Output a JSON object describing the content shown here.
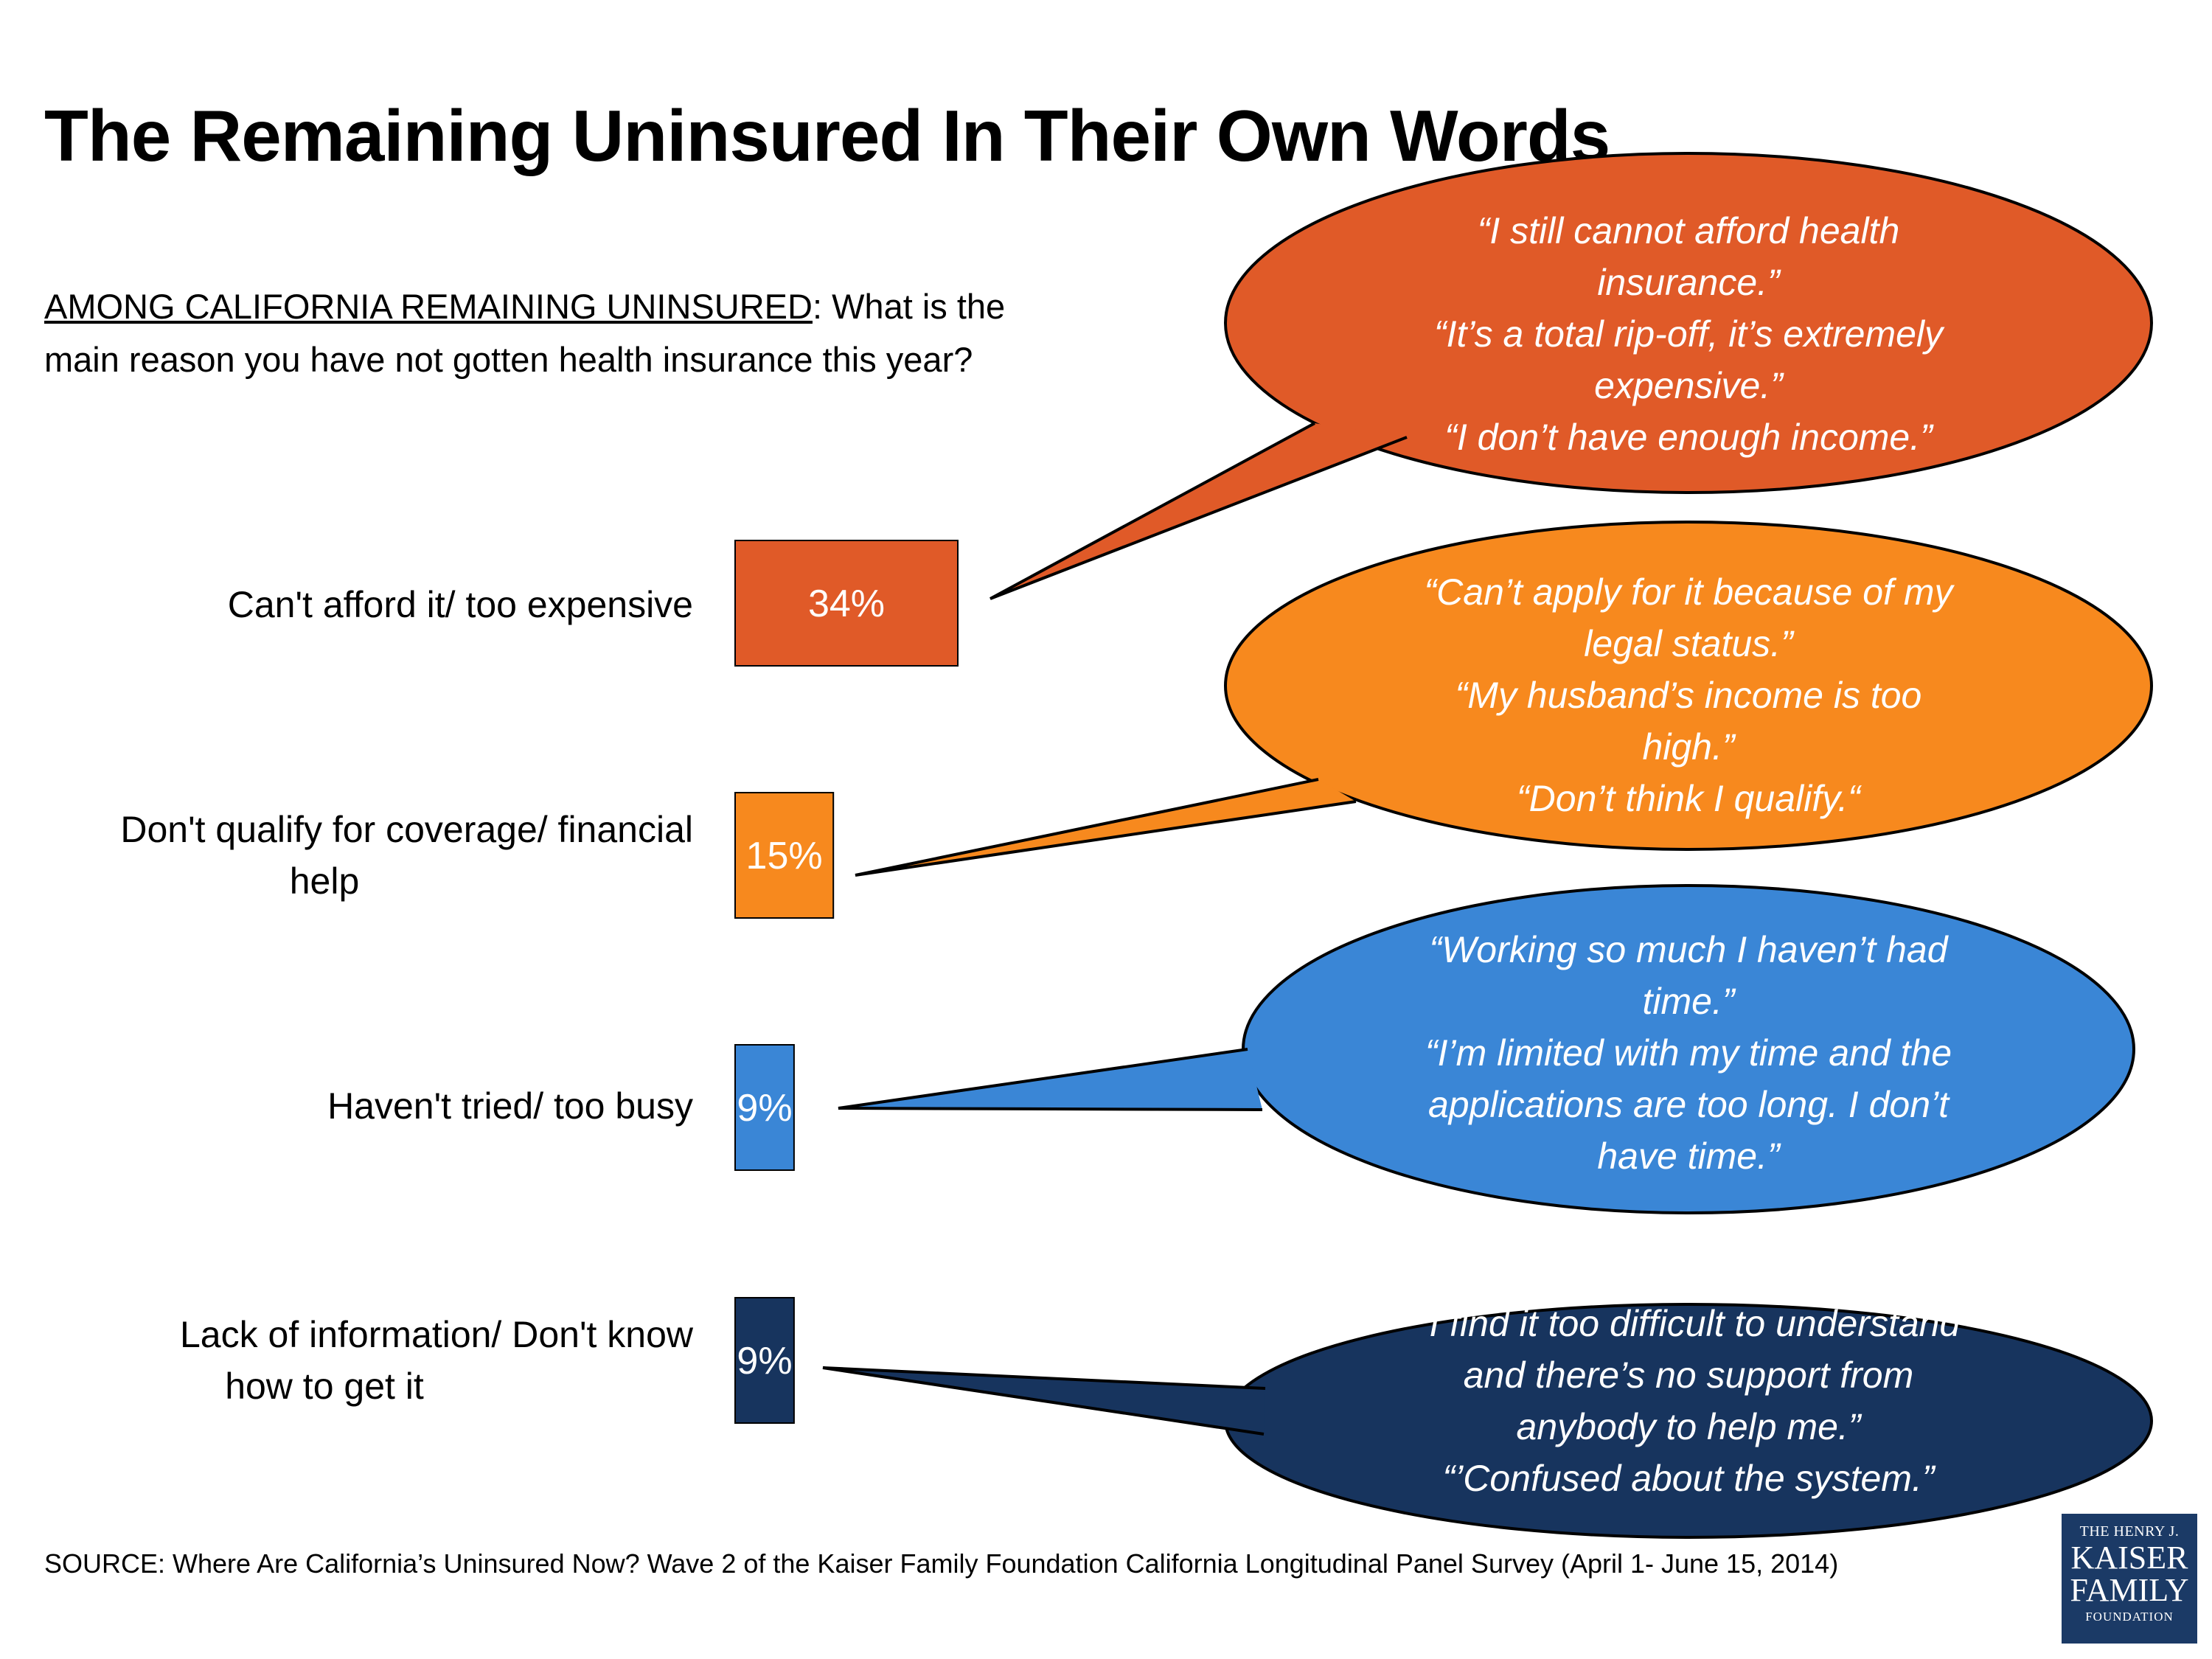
{
  "title": "The Remaining Uninsured In Their Own Words",
  "question": {
    "lead": "AMONG CALIFORNIA REMAINING UNINSURED",
    "text": ": What is the main reason you have not gotten health insurance this year?"
  },
  "chart_data": {
    "type": "bar",
    "orientation": "horizontal",
    "title": "",
    "categories": [
      "Can't afford it/ too expensive",
      "Don't qualify for coverage/ financial help",
      "Haven't tried/ too busy",
      "Lack of information/ Don't know how to get it"
    ],
    "category_lines": [
      [
        "Can't afford it/ too expensive"
      ],
      [
        "Don't qualify for coverage/ financial",
        "help"
      ],
      [
        "Haven't tried/ too busy"
      ],
      [
        "Lack of information/ Don't know",
        "how to get it"
      ]
    ],
    "values": [
      34,
      15,
      9,
      9
    ],
    "value_labels": [
      "34%",
      "15%",
      "9%",
      "9%"
    ],
    "unit": "%",
    "colors": [
      "#e05a28",
      "#f7891e",
      "#3a86d6",
      "#17345e"
    ],
    "grid": false,
    "legend": "none"
  },
  "quotes": [
    {
      "color": "#e05a28",
      "lines": [
        "“I still cannot afford health",
        "insurance.”",
        "“It’s a total rip-off, it’s extremely",
        "expensive.”",
        "“I don’t have enough income.”"
      ]
    },
    {
      "color": "#f7891e",
      "lines": [
        "“Can’t apply for it because of my",
        "legal status.”",
        "“My husband’s income is too",
        "high.”",
        "“Don’t think I qualify.“"
      ]
    },
    {
      "color": "#3a86d6",
      "lines": [
        "“Working so much I haven’t had",
        "time.”",
        "“I’m limited with my time and the",
        "applications are too long. I don’t",
        "have time.”"
      ]
    },
    {
      "color": "#17345e",
      "lines": [
        "“I find it too difficult to understand",
        "and there’s no support from",
        "anybody to help me.”",
        "“’Confused about the system.”"
      ]
    }
  ],
  "source": "SOURCE: Where Are California’s Uninsured Now? Wave 2 of the Kaiser Family Foundation California Longitudinal Panel Survey (April 1- June 15, 2014)",
  "logo": {
    "line1": "THE HENRY J.",
    "line2": "KAISER",
    "line3": "FAMILY",
    "line4": "FOUNDATION"
  }
}
